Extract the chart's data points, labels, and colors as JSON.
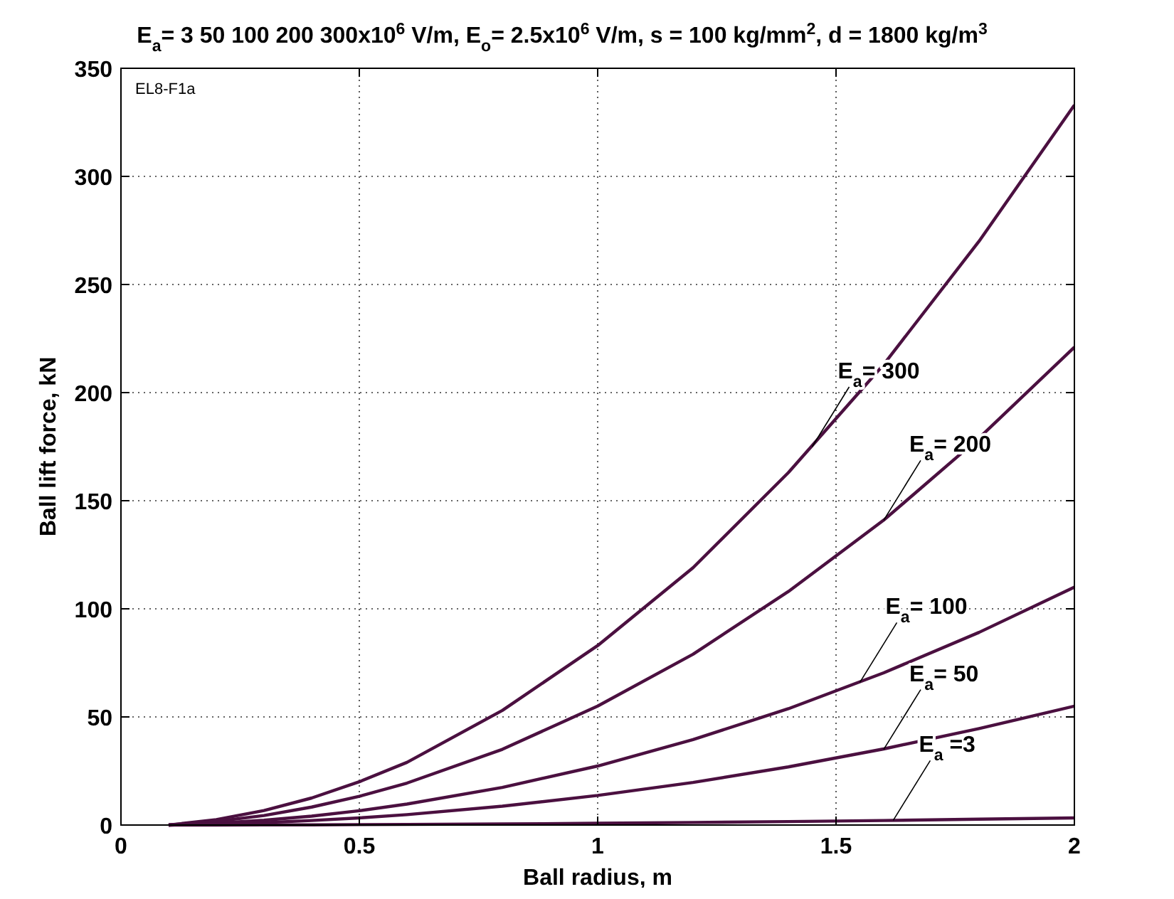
{
  "chart_data": {
    "type": "line",
    "title": "E$_{a}$= 3   50  100  200  300x10$^{6}$ V/m, E$_{o}$= 2.5x10$^{6}$ V/m, s = 100 kg/mm$^{2}$, d = 1800 kg/m$^{3}$",
    "xlabel": "Ball radius, m",
    "ylabel": "Ball lift force, kN",
    "x": [
      0.1,
      0.2,
      0.3,
      0.4,
      0.5,
      0.6,
      0.8,
      1.0,
      1.2,
      1.4,
      1.6,
      1.8,
      2.0
    ],
    "series": [
      {
        "color": "#4b1040",
        "values": [
          0,
          2.5,
          6.7,
          12.5,
          20,
          29,
          53,
          83,
          119,
          163,
          213,
          270,
          333
        ]
      },
      {
        "color": "#4b1040",
        "values": [
          0,
          1.7,
          4.4,
          8.3,
          13.3,
          19.4,
          35,
          55,
          79,
          108,
          141,
          179,
          221
        ]
      },
      {
        "color": "#4b1040",
        "values": [
          0,
          0.8,
          2.2,
          4.1,
          6.6,
          9.7,
          17.4,
          27.3,
          39.5,
          53.8,
          70.4,
          89.1,
          110
        ]
      },
      {
        "color": "#4b1040",
        "values": [
          0,
          0.4,
          1.1,
          2.1,
          3.3,
          4.8,
          8.7,
          13.7,
          19.7,
          26.9,
          35.2,
          44.6,
          55
        ]
      },
      {
        "color": "#4b1040",
        "values": [
          0,
          0,
          0.1,
          0.1,
          0.2,
          0.3,
          0.5,
          0.8,
          1.2,
          1.6,
          2.1,
          2.7,
          3.3
        ]
      }
    ],
    "annotations": [
      "EL8-F1a",
      {
        "text": "E$_{a}$= 300",
        "x": 1.45,
        "y": 175
      },
      {
        "text": "E$_{a}$= 200",
        "x": 1.6,
        "y": 141
      },
      {
        "text": "E$_{a}$= 100",
        "x": 1.55,
        "y": 66
      },
      {
        "text": "E$_{a}$= 50",
        "x": 1.6,
        "y": 35
      },
      {
        "text": "E$_{a}$ =3",
        "x": 1.62,
        "y": 2.2
      }
    ],
    "xlim": [
      0,
      2
    ],
    "ylim": [
      0,
      350
    ],
    "xticks": [
      0,
      0.5,
      1,
      1.5,
      2
    ],
    "yticks": [
      0,
      50,
      100,
      150,
      200,
      250,
      300,
      350
    ],
    "grid": true,
    "line_style": "solid",
    "marker": "none"
  }
}
